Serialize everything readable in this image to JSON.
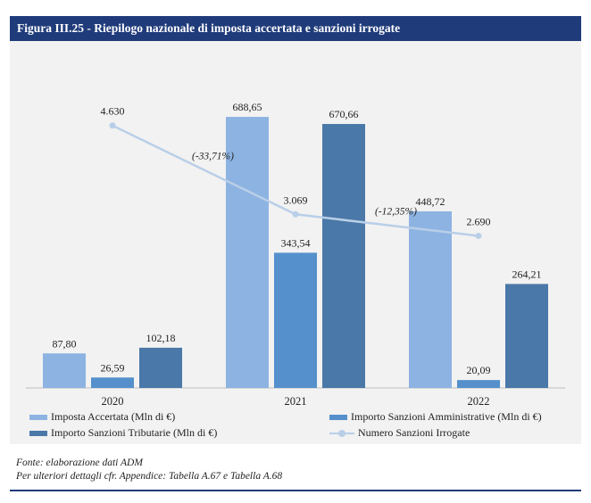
{
  "header": {
    "title": "Figura III.25 - Riepilogo nazionale di imposta accertata e sanzioni irrogate"
  },
  "notes": {
    "source": "Fonte: elaborazione dati ADM",
    "details": "Per ulteriori dettagli cfr. Appendice: Tabella A.67 e Tabella A.68"
  },
  "chart_data": {
    "type": "bar",
    "categories": [
      "2020",
      "2021",
      "2022"
    ],
    "series": [
      {
        "name": "Imposta Accertata (Mln di €)",
        "values": [
          87.8,
          688.65,
          448.72
        ],
        "labels": [
          "87,80",
          "688,65",
          "448,72"
        ],
        "color": "#8db3e2"
      },
      {
        "name": "Importo Sanzioni Amministrative (Mln di €)",
        "values": [
          26.59,
          343.54,
          20.09
        ],
        "labels": [
          "26,59",
          "343,54",
          "20,09"
        ],
        "color": "#5590cc"
      },
      {
        "name": "Importo Sanzioni Tributarie (Mln di €)",
        "values": [
          102.18,
          670.66,
          264.21
        ],
        "labels": [
          "102,18",
          "670,66",
          "264,21"
        ],
        "color": "#4a78a8"
      }
    ],
    "line_series": {
      "name": "Numero Sanzioni Irrogate",
      "values": [
        4630,
        3069,
        2690
      ],
      "labels": [
        "4.630",
        "3.069",
        "2.690"
      ],
      "color": "#b9cfe8"
    },
    "annotations": [
      "(-33,71%)",
      "(-12,35%)"
    ],
    "ylim": [
      0,
      750
    ],
    "line_ylim": [
      0,
      6100
    ],
    "grid": false,
    "legend_position": "bottom"
  }
}
